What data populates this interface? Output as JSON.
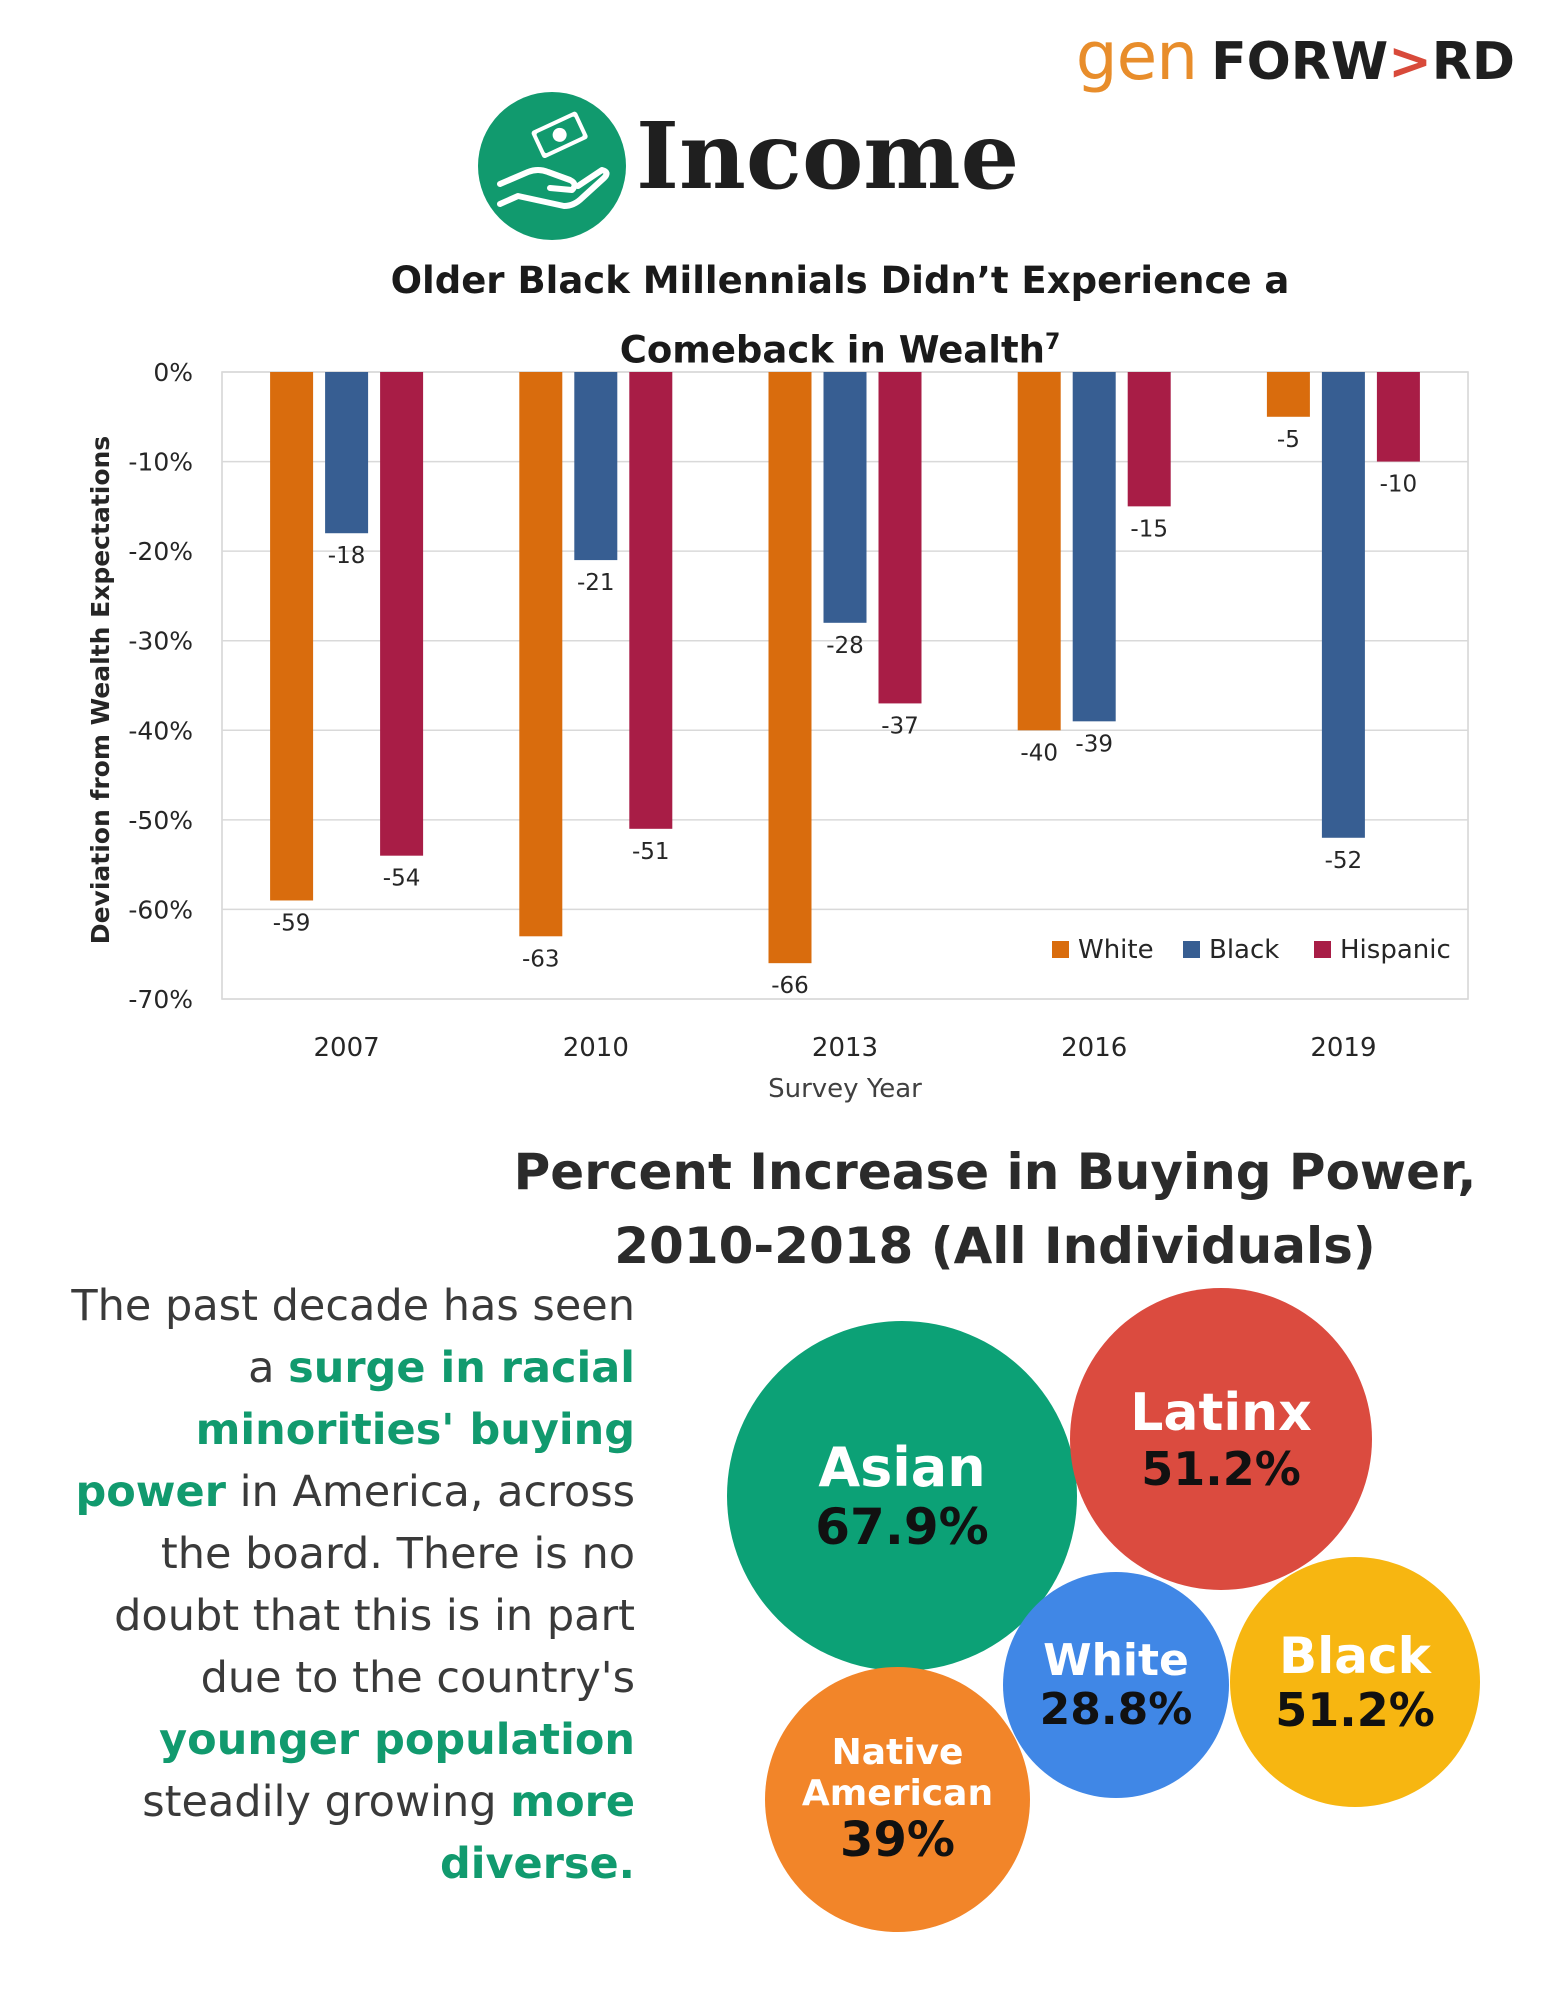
{
  "brand": {
    "gen": "gen",
    "forward_a": "FORW",
    "forward_arrow": ">",
    "forward_b": "RD"
  },
  "section": {
    "title": "Income",
    "icon": "hand-receiving-money-icon",
    "icon_color": "#119a6e"
  },
  "chart_data": {
    "type": "bar",
    "title_line1": "Older Black Millennials Didn’t Experience a",
    "title_line2": "Comeback in Wealth",
    "title_footnote": "7",
    "xlabel": "Survey Year",
    "ylabel": "Deviation from Wealth Expectations",
    "categories": [
      "2007",
      "2010",
      "2013",
      "2016",
      "2019"
    ],
    "ylim": [
      -70,
      0
    ],
    "yticks": [
      0,
      -10,
      -20,
      -30,
      -40,
      -50,
      -60,
      -70
    ],
    "ytick_labels": [
      "0%",
      "-10%",
      "-20%",
      "-30%",
      "-40%",
      "-50%",
      "-60%",
      "-70%"
    ],
    "grid": true,
    "legend_position": "bottom-right",
    "series": [
      {
        "name": "White",
        "color": "#d96c0d",
        "values": [
          -59,
          -63,
          -66,
          -40,
          -5
        ],
        "labels": [
          "-59",
          "-63",
          "-66",
          "-40",
          "-5"
        ]
      },
      {
        "name": "Black",
        "color": "#375e92",
        "values": [
          -18,
          -21,
          -28,
          -39,
          -52
        ],
        "labels": [
          "-18",
          "-21",
          "-28",
          "-39",
          "-52"
        ]
      },
      {
        "name": "Hispanic",
        "color": "#a81d46",
        "values": [
          -54,
          -51,
          -37,
          -15,
          -10
        ],
        "labels": [
          "-54",
          "-51",
          "-37",
          "-15",
          "-10"
        ]
      }
    ]
  },
  "buying_power": {
    "title_line1": "Percent Increase in Buying Power,",
    "title_line2": "2010-2018 (All Individuals)",
    "groups": [
      {
        "label": "Asian",
        "value": "67.9%",
        "color": "#0ca176"
      },
      {
        "label": "Latinx",
        "value": "51.2%",
        "color": "#db4b3f"
      },
      {
        "label": "White",
        "value": "28.8%",
        "color": "#4087e6"
      },
      {
        "label": "Black",
        "value": "51.2%",
        "color": "#f7b611"
      },
      {
        "label": "Native American",
        "label_line1": "Native",
        "label_line2": "American",
        "value": "39%",
        "color": "#f28529"
      }
    ]
  },
  "paragraph": {
    "p1": "The past decade has seen a ",
    "h1": "surge in racial minorities' buying power",
    "p2": " in America, across the board. There is no doubt that this is in part due to the country's ",
    "h2": "younger population",
    "p3": " steadily growing ",
    "h3": "more diverse."
  }
}
